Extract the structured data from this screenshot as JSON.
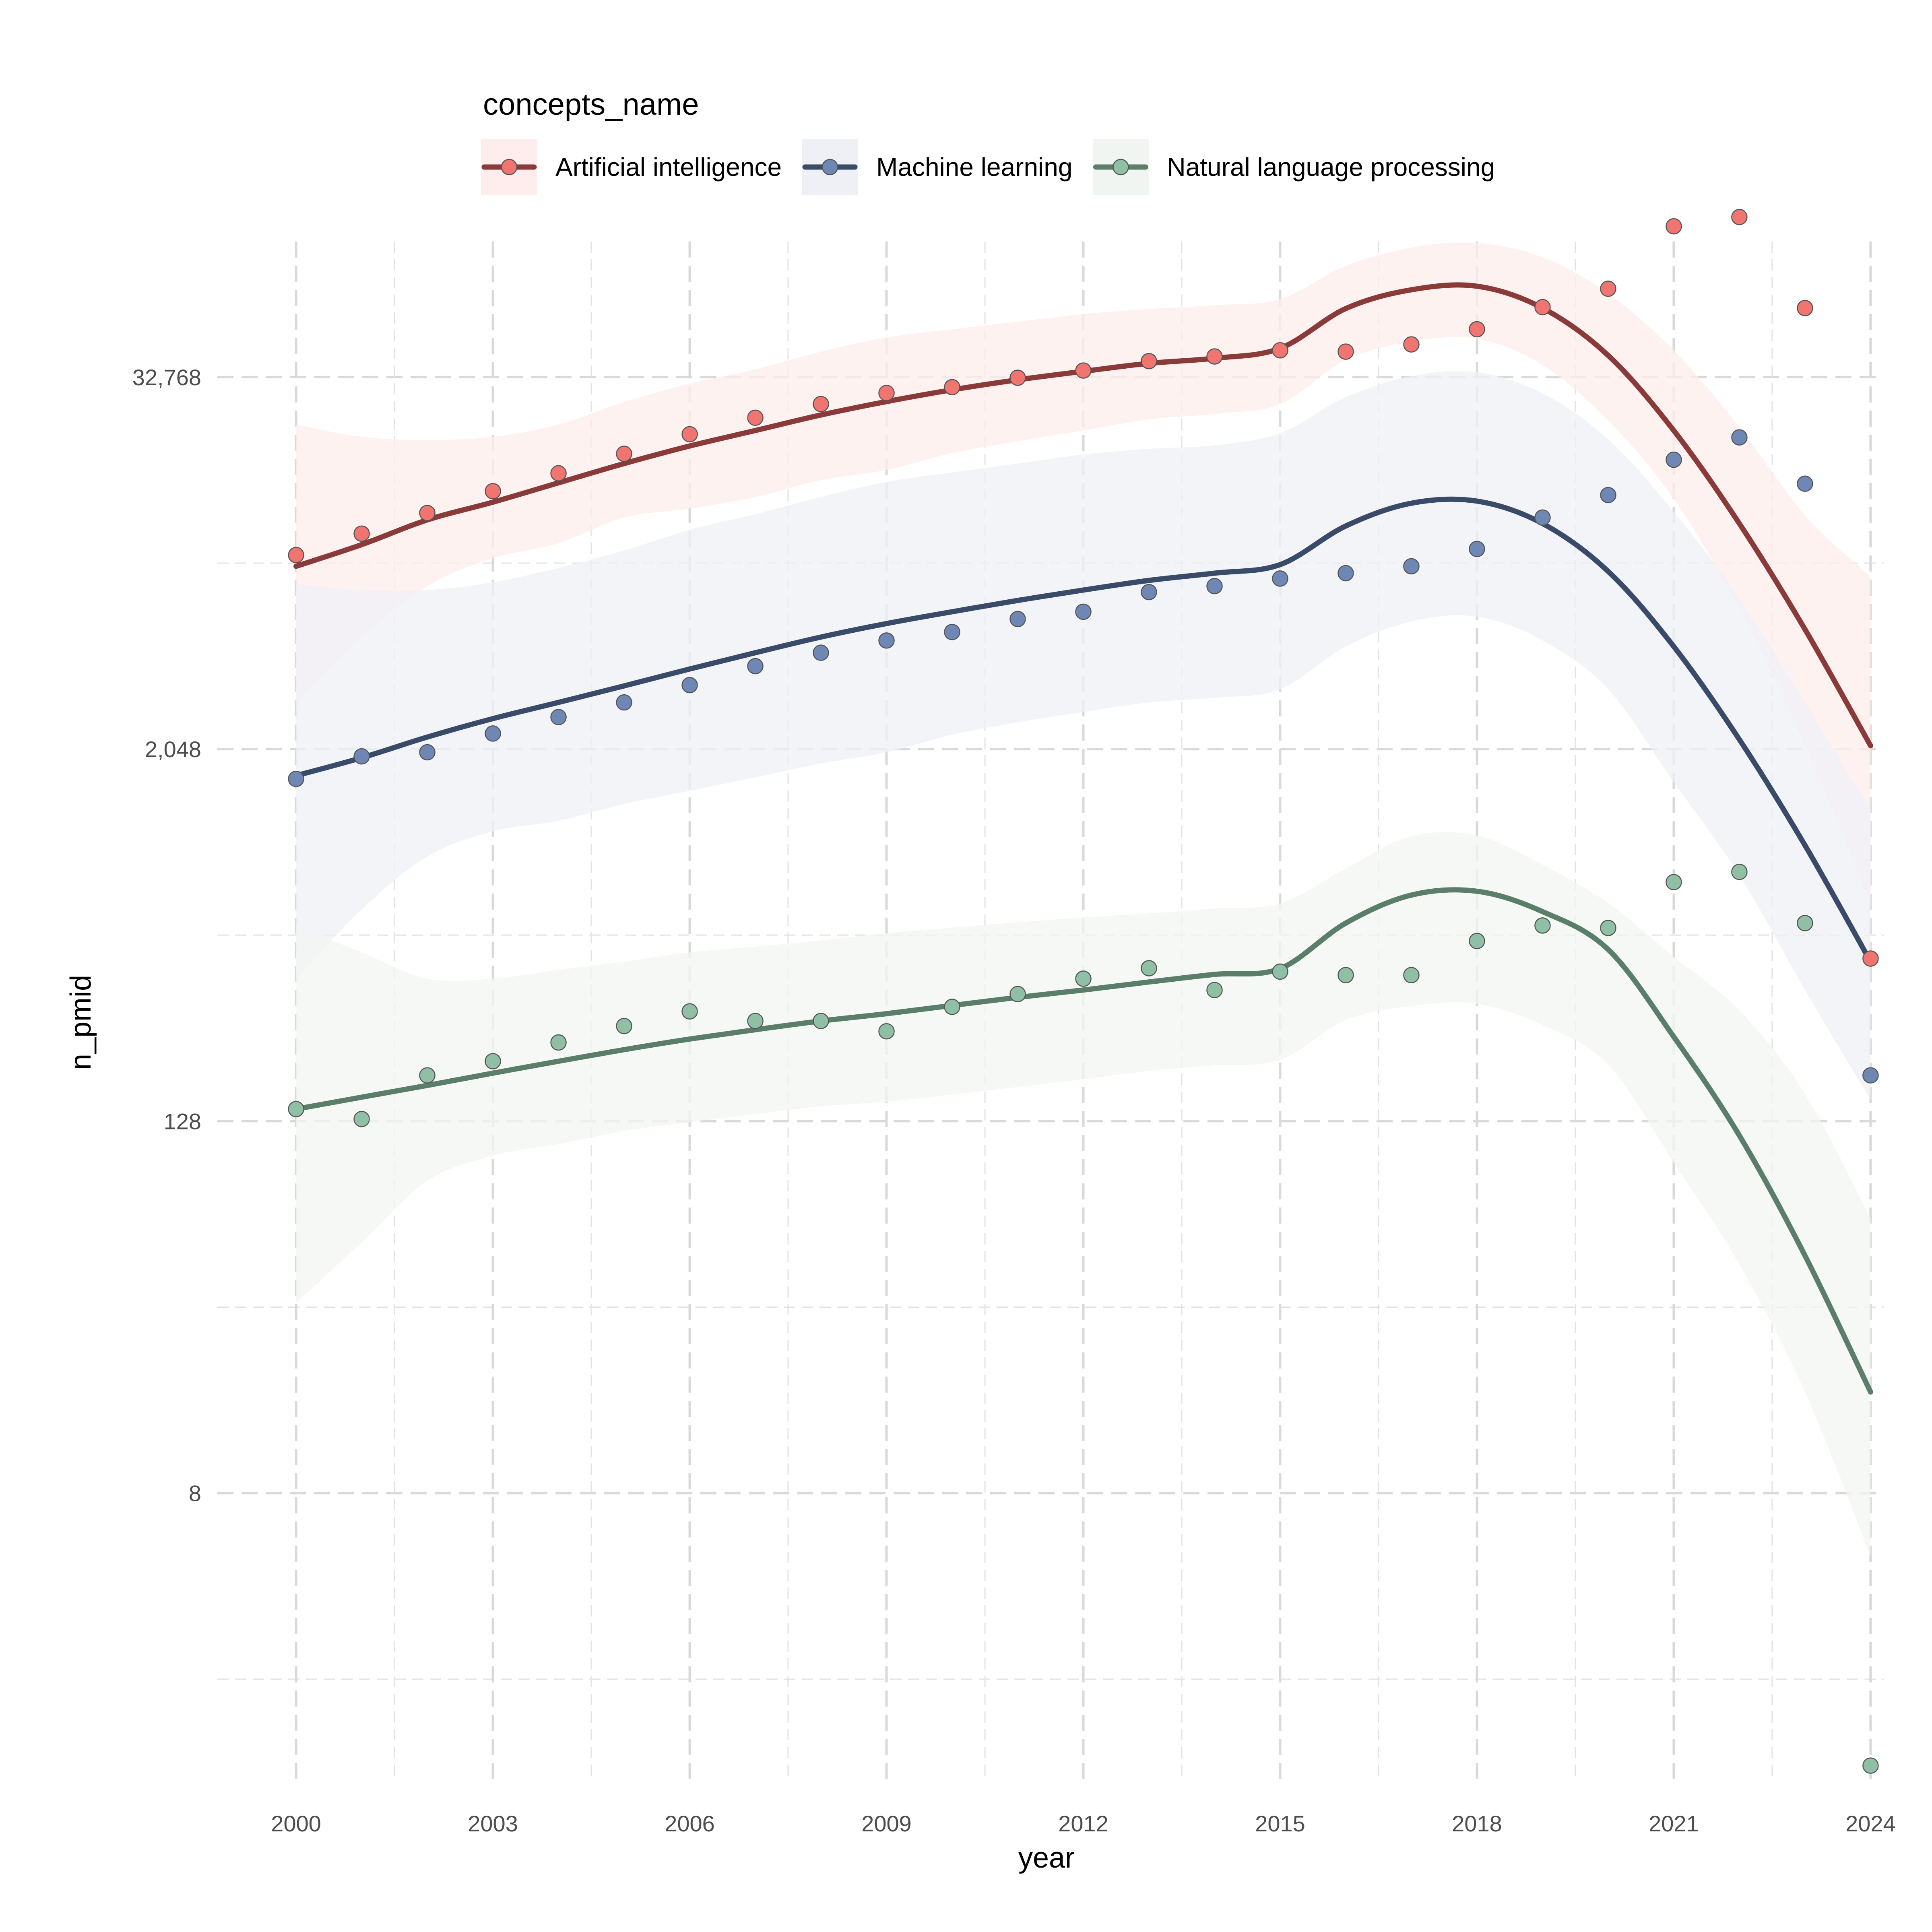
{
  "chart_data": {
    "type": "scatter",
    "xlabel": "year",
    "ylabel": "n_pmid",
    "x_scale": "linear",
    "y_scale": "log2",
    "xlim": [
      1998.8,
      2024.2
    ],
    "ylim": [
      0.95,
      90000
    ],
    "x_ticks": [
      2000,
      2003,
      2006,
      2009,
      2012,
      2015,
      2018,
      2021,
      2024
    ],
    "x_tick_labels": [
      "2000",
      "2003",
      "2006",
      "2009",
      "2012",
      "2015",
      "2018",
      "2021",
      "2024"
    ],
    "y_ticks": [
      8,
      128,
      2048,
      32768
    ],
    "y_tick_labels": [
      "8",
      "128",
      "2,048",
      "32,768"
    ],
    "grid": true,
    "legend": {
      "title": "concepts_name",
      "position": "top"
    },
    "x": [
      2000,
      2001,
      2002,
      2003,
      2004,
      2005,
      2006,
      2007,
      2008,
      2009,
      2010,
      2011,
      2012,
      2013,
      2014,
      2015,
      2016,
      2017,
      2018,
      2019,
      2020,
      2021,
      2022,
      2023,
      2024
    ],
    "series": [
      {
        "name": "Artificial intelligence",
        "point_color": "#F07470",
        "line_color": "#8B3A3A",
        "band_color": "#FEEDEC",
        "values": [
          8700,
          10200,
          11900,
          14000,
          16000,
          18500,
          21400,
          24200,
          26800,
          29100,
          30400,
          32600,
          34400,
          36900,
          38200,
          40000,
          39600,
          41800,
          46800,
          55200,
          63300,
          100800,
          108000,
          54800,
          430
        ],
        "smooth": [
          8000,
          9400,
          11300,
          12900,
          14900,
          17200,
          19600,
          22000,
          24700,
          27300,
          29800,
          32100,
          34200,
          36300,
          37700,
          40600,
          54600,
          62800,
          64500,
          54800,
          38500,
          22000,
          11000,
          5000,
          2100
        ],
        "band_lower": [
          2900,
          4700,
          6900,
          8500,
          9500,
          11500,
          12300,
          13400,
          15200,
          16400,
          18600,
          20300,
          22000,
          23900,
          24900,
          26800,
          37200,
          42700,
          43600,
          35800,
          23700,
          13200,
          5800,
          2100,
          650
        ],
        "band_upper": [
          23000,
          21000,
          20500,
          21000,
          23000,
          27200,
          31200,
          34700,
          39600,
          44000,
          46800,
          49500,
          52400,
          54400,
          56000,
          58600,
          75000,
          86000,
          89000,
          80000,
          61000,
          40000,
          22600,
          11700,
          7400
        ]
      },
      {
        "name": "Machine learning",
        "point_color": "#6F87B4",
        "line_color": "#3A4B6A",
        "band_color": "#EFF0F6",
        "values": [
          1640,
          1940,
          2000,
          2300,
          2600,
          2900,
          3300,
          3800,
          4200,
          4600,
          4900,
          5400,
          5700,
          6600,
          6900,
          7300,
          7600,
          8000,
          9100,
          11500,
          13600,
          17700,
          20900,
          14800,
          180
        ],
        "smooth": [
          1680,
          1920,
          2240,
          2570,
          2900,
          3280,
          3720,
          4200,
          4720,
          5220,
          5700,
          6200,
          6700,
          7200,
          7600,
          8100,
          10800,
          12800,
          13000,
          11000,
          7700,
          4400,
          2200,
          1000,
          420
        ],
        "band_lower": [
          370,
          620,
          920,
          1110,
          1200,
          1360,
          1500,
          1660,
          1840,
          2000,
          2280,
          2500,
          2700,
          2900,
          3000,
          3200,
          4400,
          5300,
          5500,
          4600,
          3200,
          1600,
          800,
          340,
          150
        ],
        "band_upper": [
          7000,
          6700,
          6700,
          7100,
          7900,
          9000,
          10500,
          11800,
          13400,
          15000,
          16100,
          17200,
          18400,
          19200,
          19700,
          21600,
          28200,
          33000,
          34000,
          29000,
          20600,
          12000,
          6300,
          2900,
          1300
        ]
      },
      {
        "name": "Natural language processing",
        "point_color": "#8FC0A6",
        "line_color": "#5B7E6B",
        "band_color": "#F1F5F2",
        "values": [
          140,
          130,
          180,
          200,
          230,
          260,
          290,
          270,
          270,
          250,
          300,
          330,
          370,
          400,
          340,
          390,
          380,
          380,
          490,
          550,
          540,
          760,
          820,
          560,
          1.05
        ],
        "smooth": [
          140,
          153,
          167,
          183,
          200,
          218,
          236,
          253,
          270,
          285,
          303,
          322,
          340,
          361,
          382,
          399,
          560,
          690,
          710,
          610,
          460,
          240,
          115,
          47,
          17
        ],
        "band_lower": [
          33,
          52,
          82,
          99,
          108,
          119,
          127,
          135,
          143,
          148,
          156,
          165,
          175,
          186,
          194,
          202,
          272,
          302,
          307,
          262,
          195,
          94,
          44,
          17,
          5
        ],
        "band_upper": [
          550,
          450,
          370,
          370,
          395,
          420,
          450,
          470,
          492,
          520,
          541,
          563,
          584,
          602,
          625,
          648,
          840,
          1070,
          1075,
          865,
          650,
          435,
          292,
          157,
          62
        ]
      }
    ]
  }
}
